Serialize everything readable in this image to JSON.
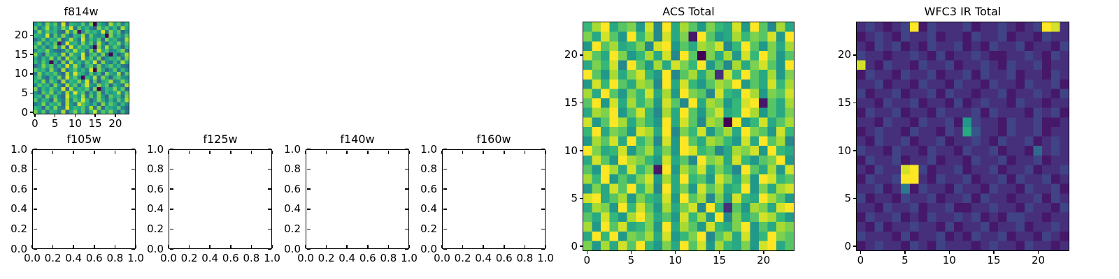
{
  "figure": {
    "background": "#ffffff",
    "text_color": "#000000",
    "axis_color": "#000000"
  },
  "colormap": {
    "name": "viridis",
    "colors": [
      "#440154",
      "#482878",
      "#3e4a89",
      "#31688e",
      "#26828e",
      "#1f9e89",
      "#35b779",
      "#6ece58",
      "#b5de2b",
      "#fde725"
    ]
  },
  "chart_data": [
    {
      "id": "f814w",
      "type": "heatmap",
      "title": "f814w",
      "grid_size": 24,
      "extent": [
        -0.5,
        23.5
      ],
      "origin": "lower",
      "xticks": [
        0,
        5,
        10,
        15,
        20
      ],
      "xtick_labels": [
        "0",
        "5",
        "10",
        "15",
        "20"
      ],
      "yticks": [
        0,
        5,
        10,
        15,
        20
      ],
      "ytick_labels": [
        "0",
        "5",
        "10",
        "15",
        "20"
      ],
      "value_scale": [
        0,
        15
      ],
      "values_hex_rows_top_to_bottom": [
        "8a7c9b6e5a98b7c0a86d9b7a",
        "b69d8a7c9e6b8a75c9b8a6d9",
        "7c8b9a65d8c17b9a8e6c9b58",
        "a98e6b7c85a9d6b8790c8a7b",
        "68b7a9c58d96e7a8b5c9a76d",
        "9c7a8b16e9a7c8b6d85a9c7b",
        "b8a69c7d5e8b9a60c7d8b95a",
        "7a9c8657b8d9a6c5e9b78ac6",
        "c85b9a7d6c98e5ab7c60958d",
        "96a8c7b5d9a6e8b7c58a9b6c",
        "a7b8095c6d8a7b9e5c86a7d9",
        "58c9b6a7e8d95ab6c79b8a65",
        "b9a7c85d69b8a7e0c958b6a7",
        "6c8a9b75d8ea96b7a5c98d6b",
        "9b75a8c6e9b70a8d6c95ab87",
        "a8c6b95d7a9c8e6b59ad78c9",
        "7b9a6c85d9b6ae87c9b5a86d",
        "c6a8b97e5d8a9b6c07a9c8b5",
        "85b9c7a6d8e9b5a7c6a89d7b",
        "9a6c8b75e9a8d6b7c85b9a6c",
        "b7a95c86d7b9ea58c96a7b8d",
        "68c7a9b5d86eb97a5c8b96a7",
        "a95b8c76e8a9b7d6c5a98b75",
        "c8b6a97d59c8b6ae7b9c85a6"
      ]
    },
    {
      "id": "f105w",
      "type": "empty",
      "title": "f105w",
      "xlim": [
        0,
        1
      ],
      "ylim": [
        0,
        1
      ],
      "xticks": [
        0,
        0.2,
        0.4,
        0.6,
        0.8,
        1.0
      ],
      "xtick_labels": [
        "0.0",
        "0.2",
        "0.4",
        "0.6",
        "0.8",
        "1.0"
      ],
      "yticks": [
        0,
        0.2,
        0.4,
        0.6,
        0.8,
        1.0
      ],
      "ytick_labels": [
        "0.0",
        "0.2",
        "0.4",
        "0.6",
        "0.8",
        "1.0"
      ]
    },
    {
      "id": "f125w",
      "type": "empty",
      "title": "f125w",
      "xlim": [
        0,
        1
      ],
      "ylim": [
        0,
        1
      ],
      "xticks": [
        0,
        0.2,
        0.4,
        0.6,
        0.8,
        1.0
      ],
      "xtick_labels": [
        "0.0",
        "0.2",
        "0.4",
        "0.6",
        "0.8",
        "1.0"
      ],
      "yticks": [
        0,
        0.2,
        0.4,
        0.6,
        0.8,
        1.0
      ],
      "ytick_labels": [
        "0.0",
        "0.2",
        "0.4",
        "0.6",
        "0.8",
        "1.0"
      ]
    },
    {
      "id": "f140w",
      "type": "empty",
      "title": "f140w",
      "xlim": [
        0,
        1
      ],
      "ylim": [
        0,
        1
      ],
      "xticks": [
        0,
        0.2,
        0.4,
        0.6,
        0.8,
        1.0
      ],
      "xtick_labels": [
        "0.0",
        "0.2",
        "0.4",
        "0.6",
        "0.8",
        "1.0"
      ],
      "yticks": [
        0,
        0.2,
        0.4,
        0.6,
        0.8,
        1.0
      ],
      "ytick_labels": [
        "0.0",
        "0.2",
        "0.4",
        "0.6",
        "0.8",
        "1.0"
      ]
    },
    {
      "id": "f160w",
      "type": "empty",
      "title": "f160w",
      "xlim": [
        0,
        1
      ],
      "ylim": [
        0,
        1
      ],
      "xticks": [
        0,
        0.2,
        0.4,
        0.6,
        0.8,
        1.0
      ],
      "xtick_labels": [
        "0.0",
        "0.2",
        "0.4",
        "0.6",
        "0.8",
        "1.0"
      ],
      "yticks": [
        0,
        0.2,
        0.4,
        0.6,
        0.8,
        1.0
      ],
      "ytick_labels": [
        "0.0",
        "0.2",
        "0.4",
        "0.6",
        "0.8",
        "1.0"
      ]
    },
    {
      "id": "acs_total",
      "type": "heatmap",
      "title": "ACS Total",
      "grid_size": 24,
      "extent": [
        -0.5,
        23.5
      ],
      "origin": "lower",
      "xticks": [
        0,
        5,
        10,
        15,
        20
      ],
      "xtick_labels": [
        "0",
        "5",
        "10",
        "15",
        "20"
      ],
      "yticks": [
        0,
        5,
        10,
        15,
        20
      ],
      "ytick_labels": [
        "0",
        "5",
        "10",
        "15",
        "20"
      ],
      "value_scale": [
        0,
        15
      ],
      "values_hex_rows_top_to_bottom": [
        "adf9bc8e7f9db8ca9e8fb7d9",
        "c9eb8fad7e9c1fb89dacbe8f",
        "8fbd9ac7ef8b9dce7afb8c9d",
        "eb9fc8ad9e7fb0c9d8eafc8b",
        "9cae7fb8d9ecaf8b7d9ceb8f",
        "fb8d9cea8f7bd9c2eafb9d8c",
        "8eafb9dc7f9ea8bdcf8b9ead",
        "d9fb8cae9d8fcb7ea9fd8cbe",
        "bf8e9dac8eb7f9dc8aef1b9d",
        "9dcf8bea7d9fb8ce9afd8b9c",
        "e8bfd9ca8f9eb7dc0f8ae9bd",
        "af9cb8ed9f7cae8bd9fcb8ea",
        "8dbe9fac7e8fb9dca8e9fbd7",
        "fc9ae8bd9c8feab79dce8fa9",
        "9eb8fdca8e9b7fcd9ea8bcf8",
        "b8fd9eac1f8dbe9ca7fb9d8e",
        "daf8b9ce8d9fab8ec9d8feab",
        "8c9ebfad7f9c8ebd9af8c9de",
        "ef9bd8ca9e8fbd7c8ea9fdb8",
        "9dc8faeb8d9ce7fa2b8dc9ef",
        "b9ea8dfc9b8ead8f7c9beda8",
        "d8fbe9ac8f9db8ea9cf8b9dc",
        "9faf8cbd9e8acf7bd9e8afcb",
        "c8d9ebfa8c9fbe8da9c8ef9b"
      ]
    },
    {
      "id": "wfc3_ir_total",
      "type": "heatmap",
      "title": "WFC3 IR Total",
      "grid_size": 24,
      "extent": [
        -0.5,
        23.5
      ],
      "origin": "lower",
      "xticks": [
        0,
        5,
        10,
        15,
        20
      ],
      "xtick_labels": [
        "0",
        "5",
        "10",
        "15",
        "20"
      ],
      "yticks": [
        0,
        5,
        10,
        15,
        20
      ],
      "ytick_labels": [
        "0",
        "5",
        "10",
        "15",
        "20"
      ],
      "value_scale": [
        0,
        15
      ],
      "values_hex_rows_top_to_bottom": [
        "232123f13222312232123fe2",
        "123213223122132231221322",
        "213231213223121322312213",
        "322122321312232112232132",
        "e21322132231223213223122",
        "132213223122313223122132",
        "223122132213221322132231",
        "312231223132212231223213",
        "221322312213123221322122",
        "132231221322231322213231",
        "221322132231832213223112",
        "123221322132942213223122",
        "213223122312232132231232",
        "322132213221322312215232",
        "132231223122132231223122",
        "21322ef31223122312231223",
        "13223ff21322312231322312",
        "223126132213221322132231",
        "312213223122313221223132",
        "221322312231122322132213",
        "132231213223231213322122",
        "213122322131223122312232",
        "322213122312132231221321",
        "123221321322212322132212"
      ]
    }
  ]
}
